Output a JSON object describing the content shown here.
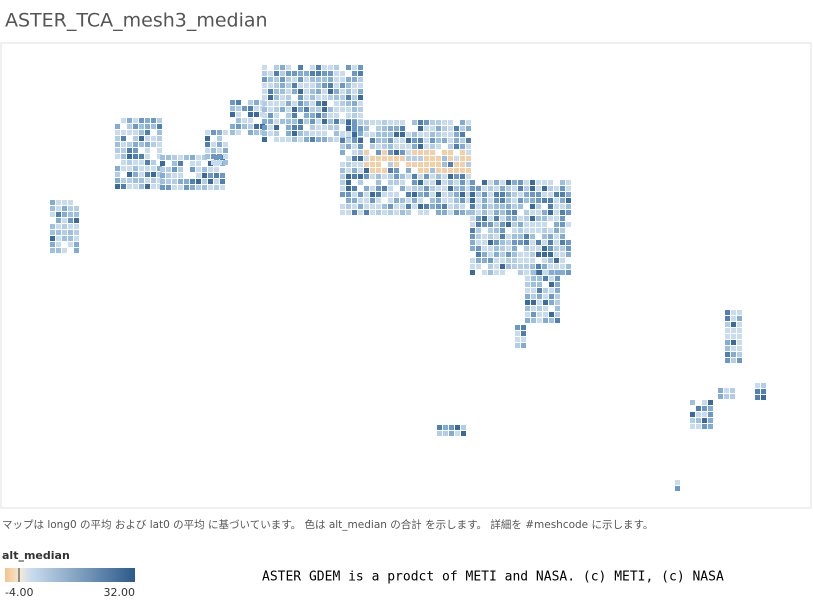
{
  "header": {
    "title": "ASTER_TCA_mesh3_median"
  },
  "map": {
    "caption": "マップは long0 の平均 および lat0 の平均 に基づいています。 色は alt_median の合計 を示します。 詳細を #meshcode に示します。"
  },
  "legend": {
    "title": "alt_median",
    "min": {
      "value": -4,
      "label": "-4.00"
    },
    "max": {
      "value": 32,
      "label": "32.00"
    }
  },
  "credit": "ASTER GDEM is a prodct of METI and NASA. (c) METI, (c) NASA"
}
